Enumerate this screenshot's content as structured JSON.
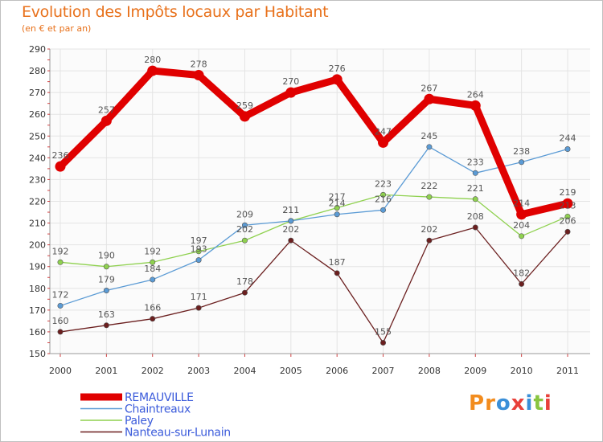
{
  "title": "Evolution des Impôts locaux par Habitant",
  "subtitle": "(en € et par an)",
  "brand": {
    "text": "Proxiti",
    "letter_colors": [
      "#f28c1e",
      "#f28c1e",
      "#3a8fd8",
      "#e8403a",
      "#3a8fd8",
      "#88c540",
      "#e8403a"
    ]
  },
  "chart_data": {
    "type": "line",
    "title": "Evolution des Impôts locaux par Habitant",
    "subtitle": "(en € et par an)",
    "xlabel": "",
    "ylabel": "",
    "ylim": [
      150,
      290
    ],
    "ytick_step": 10,
    "grid": true,
    "legend_position": "bottom-left",
    "categories": [
      "2000",
      "2001",
      "2002",
      "2003",
      "2004",
      "2005",
      "2006",
      "2007",
      "2008",
      "2009",
      "2010",
      "2011"
    ],
    "series": [
      {
        "name": "REMAUVILLE",
        "color": "#e00000",
        "style": "thick",
        "values": [
          236,
          257,
          280,
          278,
          259,
          270,
          276,
          247,
          267,
          264,
          214,
          219
        ],
        "labels": [
          "236",
          "257",
          "280",
          "278",
          "259",
          "270",
          "276",
          "247",
          "267",
          "264",
          "214",
          "219"
        ]
      },
      {
        "name": "Chaintreaux",
        "color": "#5b9bd5",
        "style": "thin",
        "values": [
          172,
          179,
          184,
          193,
          209,
          211,
          214,
          216,
          245,
          233,
          238,
          244
        ],
        "labels": [
          "172",
          "179",
          "184",
          "193",
          "209",
          "211",
          "214",
          "216",
          "245",
          "233",
          "238",
          "244"
        ]
      },
      {
        "name": "Paley",
        "color": "#8fd14f",
        "style": "thin",
        "values": [
          192,
          190,
          192,
          197,
          202,
          211,
          217,
          223,
          222,
          221,
          204,
          213
        ],
        "labels": [
          "192",
          "190",
          "192",
          "197",
          "202",
          "211",
          "217",
          "223",
          "222",
          "221",
          "204",
          "213"
        ]
      },
      {
        "name": "Nanteau-sur-Lunain",
        "color": "#6b1f1f",
        "style": "thin",
        "values": [
          160,
          163,
          166,
          171,
          178,
          202,
          187,
          155,
          202,
          208,
          182,
          206
        ],
        "labels": [
          "160",
          "163",
          "166",
          "171",
          "178",
          "202",
          "187",
          "155",
          "202",
          "208",
          "182",
          "206"
        ]
      }
    ]
  }
}
